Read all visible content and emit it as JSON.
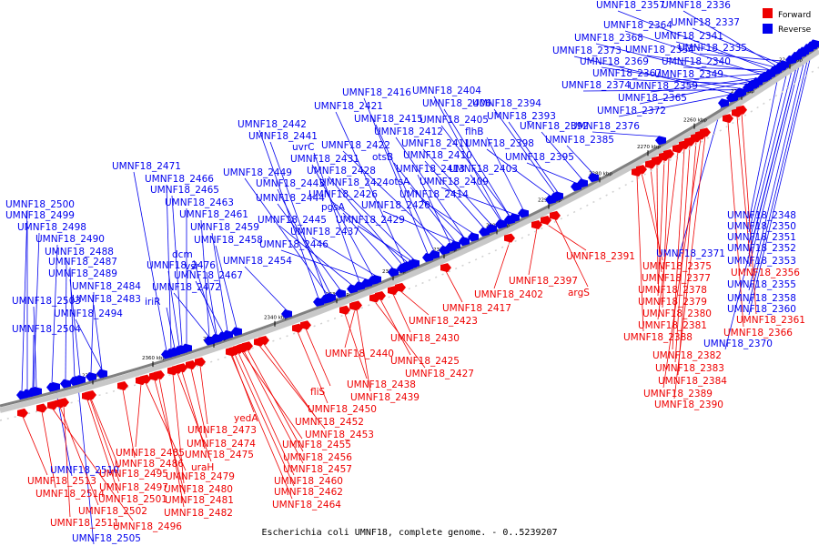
{
  "caption": "Escherichia coli UMNF18, complete genome. - 0..5239207",
  "legend": [
    {
      "label": "Forward",
      "color": "#ee0000"
    },
    {
      "label": "Reverse",
      "color": "#0000ee"
    }
  ],
  "axis": {
    "start_kbp": 2235,
    "end_kbp": 2375,
    "ticks": [
      "2240 kbp",
      "2250 kbp",
      "2260 kbp",
      "2270 kbp",
      "2280 kbp",
      "2290 kbp",
      "2300 kbp",
      "2310 kbp",
      "2320 kbp",
      "2330 kbp",
      "2340 kbp",
      "2350 kbp",
      "2360 kbp",
      "2370 kbp"
    ]
  },
  "colors": {
    "forward": "#ee0000",
    "reverse": "#0000ee",
    "backbone": "#808080"
  },
  "genes": [
    {
      "name": "UMNF18_2357",
      "strand": "reverse"
    },
    {
      "name": "UMNF18_2336",
      "strand": "reverse"
    },
    {
      "name": "UMNF18_2364",
      "strand": "reverse"
    },
    {
      "name": "UMNF18_2337",
      "strand": "reverse"
    },
    {
      "name": "UMNF18_2368",
      "strand": "reverse"
    },
    {
      "name": "UMNF18_2341",
      "strand": "reverse"
    },
    {
      "name": "UMNF18_2373",
      "strand": "reverse"
    },
    {
      "name": "UMNF18_2354",
      "strand": "reverse"
    },
    {
      "name": "UMNF18_2335",
      "strand": "reverse"
    },
    {
      "name": "UMNF18_2369",
      "strand": "reverse"
    },
    {
      "name": "UMNF18_2340",
      "strand": "reverse"
    },
    {
      "name": "UMNF18_2367",
      "strand": "reverse"
    },
    {
      "name": "UMNF18_2349",
      "strand": "reverse"
    },
    {
      "name": "UMNF18_2374",
      "strand": "reverse"
    },
    {
      "name": "UMNF18_2359",
      "strand": "reverse"
    },
    {
      "name": "UMNF18_2365",
      "strand": "reverse"
    },
    {
      "name": "UMNF18_2416",
      "strand": "reverse"
    },
    {
      "name": "UMNF18_2404",
      "strand": "reverse"
    },
    {
      "name": "UMNF18_2406",
      "strand": "reverse"
    },
    {
      "name": "UMNF18_2394",
      "strand": "reverse"
    },
    {
      "name": "UMNF18_2421",
      "strand": "reverse"
    },
    {
      "name": "UMNF18_2372",
      "strand": "reverse"
    },
    {
      "name": "UMNF18_2415",
      "strand": "reverse"
    },
    {
      "name": "UMNF18_2405",
      "strand": "reverse"
    },
    {
      "name": "UMNF18_2393",
      "strand": "reverse"
    },
    {
      "name": "UMNF18_2442",
      "strand": "reverse"
    },
    {
      "name": "UMNF18_2392",
      "strand": "reverse"
    },
    {
      "name": "UMNF18_2376",
      "strand": "reverse"
    },
    {
      "name": "UMNF18_2412",
      "strand": "reverse"
    },
    {
      "name": "flhB",
      "strand": "reverse"
    },
    {
      "name": "UMNF18_2441",
      "strand": "reverse"
    },
    {
      "name": "UMNF18_2385",
      "strand": "reverse"
    },
    {
      "name": "uvrC",
      "strand": "reverse"
    },
    {
      "name": "UMNF18_2422",
      "strand": "reverse"
    },
    {
      "name": "UMNF18_2411",
      "strand": "reverse"
    },
    {
      "name": "UMNF18_2398",
      "strand": "reverse"
    },
    {
      "name": "otsB",
      "strand": "reverse"
    },
    {
      "name": "UMNF18_2410",
      "strand": "reverse"
    },
    {
      "name": "UMNF18_2395",
      "strand": "reverse"
    },
    {
      "name": "UMNF18_2431",
      "strand": "reverse"
    },
    {
      "name": "UMNF18_2471",
      "strand": "reverse"
    },
    {
      "name": "UMNF18_2413",
      "strand": "reverse"
    },
    {
      "name": "UMNF18_2403",
      "strand": "reverse"
    },
    {
      "name": "UMNF18_2449",
      "strand": "reverse"
    },
    {
      "name": "UMNF18_2428",
      "strand": "reverse"
    },
    {
      "name": "UMNF18_2466",
      "strand": "reverse"
    },
    {
      "name": "otsA",
      "strand": "reverse"
    },
    {
      "name": "UMNF18_2443",
      "strand": "reverse"
    },
    {
      "name": "UMNF18_2424",
      "strand": "reverse"
    },
    {
      "name": "UMNF18_2409",
      "strand": "reverse"
    },
    {
      "name": "UMNF18_2465",
      "strand": "reverse"
    },
    {
      "name": "UMNF18_2426",
      "strand": "reverse"
    },
    {
      "name": "UMNF18_2414",
      "strand": "reverse"
    },
    {
      "name": "UMNF18_2444",
      "strand": "reverse"
    },
    {
      "name": "UMNF18_2463",
      "strand": "reverse"
    },
    {
      "name": "pgsA",
      "strand": "reverse"
    },
    {
      "name": "UMNF18_2420",
      "strand": "reverse"
    },
    {
      "name": "UMNF18_2348",
      "strand": "reverse"
    },
    {
      "name": "UMNF18_2500",
      "strand": "reverse"
    },
    {
      "name": "UMNF18_2461",
      "strand": "reverse"
    },
    {
      "name": "UMNF18_2445",
      "strand": "reverse"
    },
    {
      "name": "UMNF18_2429",
      "strand": "reverse"
    },
    {
      "name": "UMNF18_2499",
      "strand": "reverse"
    },
    {
      "name": "UMNF18_2350",
      "strand": "reverse"
    },
    {
      "name": "UMNF18_2498",
      "strand": "reverse"
    },
    {
      "name": "UMNF18_2459",
      "strand": "reverse"
    },
    {
      "name": "UMNF18_2437",
      "strand": "reverse"
    },
    {
      "name": "UMNF18_2351",
      "strand": "reverse"
    },
    {
      "name": "UMNF18_2490",
      "strand": "reverse"
    },
    {
      "name": "UMNF18_2458",
      "strand": "reverse"
    },
    {
      "name": "UMNF18_2446",
      "strand": "reverse"
    },
    {
      "name": "UMNF18_2352",
      "strand": "reverse"
    },
    {
      "name": "UMNF18_2488",
      "strand": "reverse"
    },
    {
      "name": "dcm",
      "strand": "reverse"
    },
    {
      "name": "UMNF18_2371",
      "strand": "reverse"
    },
    {
      "name": "UMNF18_2353",
      "strand": "reverse"
    },
    {
      "name": "UMNF18_2487",
      "strand": "reverse"
    },
    {
      "name": "UMNF18_2476",
      "strand": "reverse"
    },
    {
      "name": "vsr",
      "strand": "reverse"
    },
    {
      "name": "UMNF18_2454",
      "strand": "reverse"
    },
    {
      "name": "UMNF18_2489",
      "strand": "reverse"
    },
    {
      "name": "UMNF18_2467",
      "strand": "reverse"
    },
    {
      "name": "UMNF18_2355",
      "strand": "reverse"
    },
    {
      "name": "UMNF18_2484",
      "strand": "reverse"
    },
    {
      "name": "UMNF18_2472",
      "strand": "reverse"
    },
    {
      "name": "UMNF18_2358",
      "strand": "reverse"
    },
    {
      "name": "UMNF18_2503",
      "strand": "reverse"
    },
    {
      "name": "UMNF18_2483",
      "strand": "reverse"
    },
    {
      "name": "iriR",
      "strand": "reverse"
    },
    {
      "name": "UMNF18_2360",
      "strand": "reverse"
    },
    {
      "name": "UMNF18_2494",
      "strand": "reverse"
    },
    {
      "name": "UMNF18_2504",
      "strand": "reverse"
    },
    {
      "name": "UMNF18_2370",
      "strand": "reverse"
    },
    {
      "name": "UMNF18_2510",
      "strand": "reverse"
    },
    {
      "name": "UMNF18_2505",
      "strand": "reverse"
    },
    {
      "name": "UMNF18_2391",
      "strand": "forward"
    },
    {
      "name": "UMNF18_2375",
      "strand": "forward"
    },
    {
      "name": "UMNF18_2356",
      "strand": "forward"
    },
    {
      "name": "UMNF18_2397",
      "strand": "forward"
    },
    {
      "name": "UMNF18_2377",
      "strand": "forward"
    },
    {
      "name": "UMNF18_2402",
      "strand": "forward"
    },
    {
      "name": "argS",
      "strand": "forward"
    },
    {
      "name": "UMNF18_2378",
      "strand": "forward"
    },
    {
      "name": "UMNF18_2379",
      "strand": "forward"
    },
    {
      "name": "UMNF18_2417",
      "strand": "forward"
    },
    {
      "name": "UMNF18_2380",
      "strand": "forward"
    },
    {
      "name": "UMNF18_2361",
      "strand": "forward"
    },
    {
      "name": "UMNF18_2423",
      "strand": "forward"
    },
    {
      "name": "UMNF18_2381",
      "strand": "forward"
    },
    {
      "name": "UMNF18_2366",
      "strand": "forward"
    },
    {
      "name": "UMNF18_2388",
      "strand": "forward"
    },
    {
      "name": "UMNF18_2430",
      "strand": "forward"
    },
    {
      "name": "UMNF18_2440",
      "strand": "forward"
    },
    {
      "name": "UMNF18_2382",
      "strand": "forward"
    },
    {
      "name": "UMNF18_2425",
      "strand": "forward"
    },
    {
      "name": "UMNF18_2383",
      "strand": "forward"
    },
    {
      "name": "UMNF18_2427",
      "strand": "forward"
    },
    {
      "name": "UMNF18_2384",
      "strand": "forward"
    },
    {
      "name": "UMNF18_2438",
      "strand": "forward"
    },
    {
      "name": "UMNF18_2389",
      "strand": "forward"
    },
    {
      "name": "fliS",
      "strand": "forward"
    },
    {
      "name": "UMNF18_2439",
      "strand": "forward"
    },
    {
      "name": "UMNF18_2390",
      "strand": "forward"
    },
    {
      "name": "UMNF18_2450",
      "strand": "forward"
    },
    {
      "name": "yedA",
      "strand": "forward"
    },
    {
      "name": "UMNF18_2452",
      "strand": "forward"
    },
    {
      "name": "UMNF18_2473",
      "strand": "forward"
    },
    {
      "name": "UMNF18_2453",
      "strand": "forward"
    },
    {
      "name": "UMNF18_2474",
      "strand": "forward"
    },
    {
      "name": "UMNF18_2485",
      "strand": "forward"
    },
    {
      "name": "UMNF18_2455",
      "strand": "forward"
    },
    {
      "name": "UMNF18_2475",
      "strand": "forward"
    },
    {
      "name": "UMNF18_2486",
      "strand": "forward"
    },
    {
      "name": "UMNF18_2456",
      "strand": "forward"
    },
    {
      "name": "uraH",
      "strand": "forward"
    },
    {
      "name": "UMNF18_2457",
      "strand": "forward"
    },
    {
      "name": "UMNF18_2495",
      "strand": "forward"
    },
    {
      "name": "UMNF18_2479",
      "strand": "forward"
    },
    {
      "name": "UMNF18_2513",
      "strand": "forward"
    },
    {
      "name": "UMNF18_2460",
      "strand": "forward"
    },
    {
      "name": "UMNF18_2497",
      "strand": "forward"
    },
    {
      "name": "UMNF18_2480",
      "strand": "forward"
    },
    {
      "name": "UMNF18_2514",
      "strand": "forward"
    },
    {
      "name": "UMNF18_2462",
      "strand": "forward"
    },
    {
      "name": "UMNF18_2501",
      "strand": "forward"
    },
    {
      "name": "UMNF18_2481",
      "strand": "forward"
    },
    {
      "name": "UMNF18_2464",
      "strand": "forward"
    },
    {
      "name": "UMNF18_2502",
      "strand": "forward"
    },
    {
      "name": "UMNF18_2482",
      "strand": "forward"
    },
    {
      "name": "UMNF18_2511",
      "strand": "forward"
    },
    {
      "name": "UMNF18_2496",
      "strand": "forward"
    }
  ]
}
